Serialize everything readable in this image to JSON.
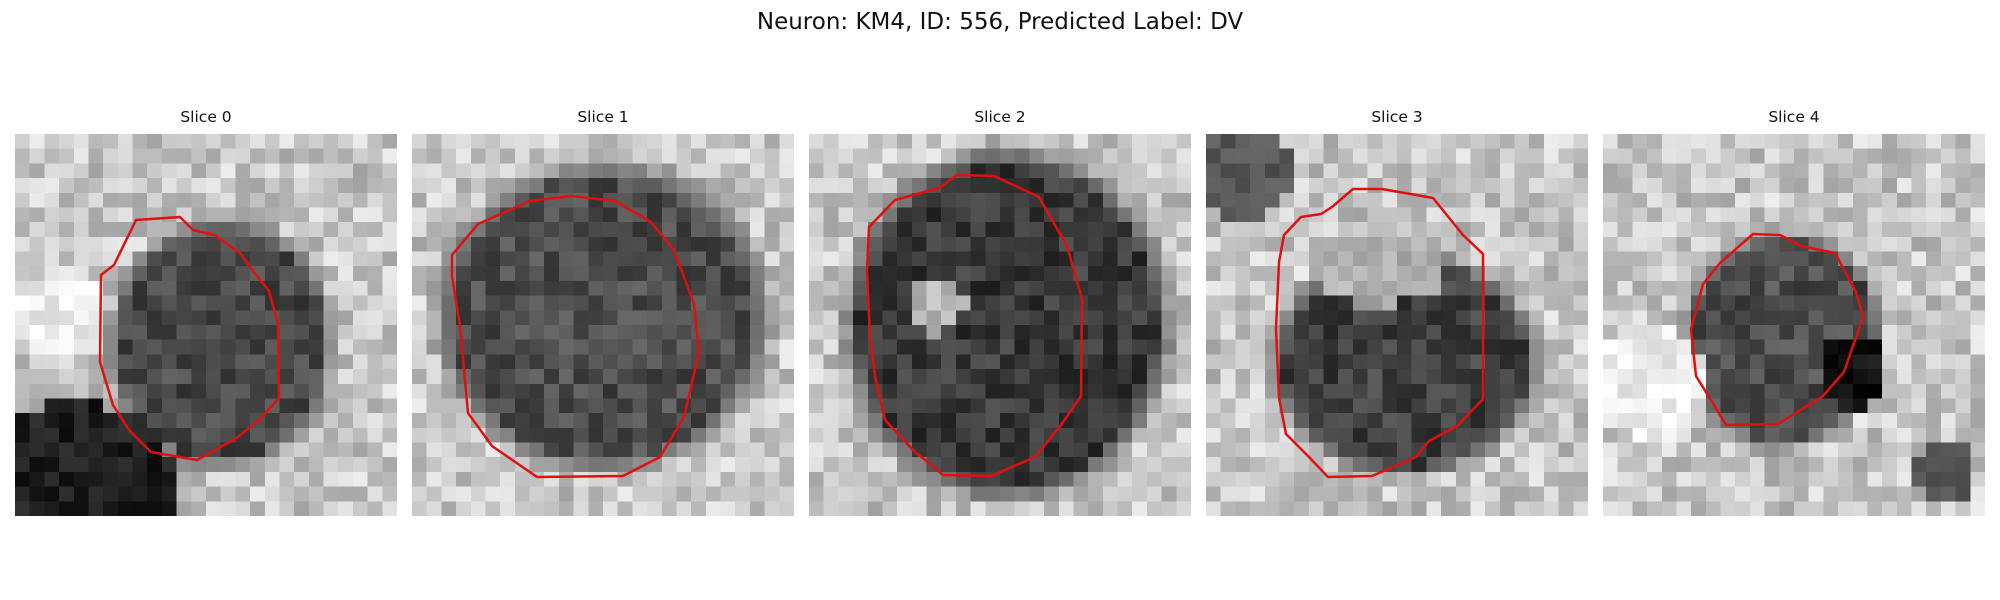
{
  "figure": {
    "title": "Neuron: KM4, ID: 556, Predicted Label: DV",
    "overlay_color": "#e01010",
    "colormap": "gray",
    "panels": [
      {
        "title": "Slice 0",
        "image_desc": "grayscale EM patch, dark round soma with darker blob at lower-left"
      },
      {
        "title": "Slice 1",
        "image_desc": "grayscale EM patch, large dark round soma"
      },
      {
        "title": "Slice 2",
        "image_desc": "grayscale EM patch, large dark soma with lighter spot on left"
      },
      {
        "title": "Slice 3",
        "image_desc": "grayscale EM patch, soma with lighter upper portion"
      },
      {
        "title": "Slice 4",
        "image_desc": "grayscale EM patch, smaller dark soma"
      }
    ]
  }
}
